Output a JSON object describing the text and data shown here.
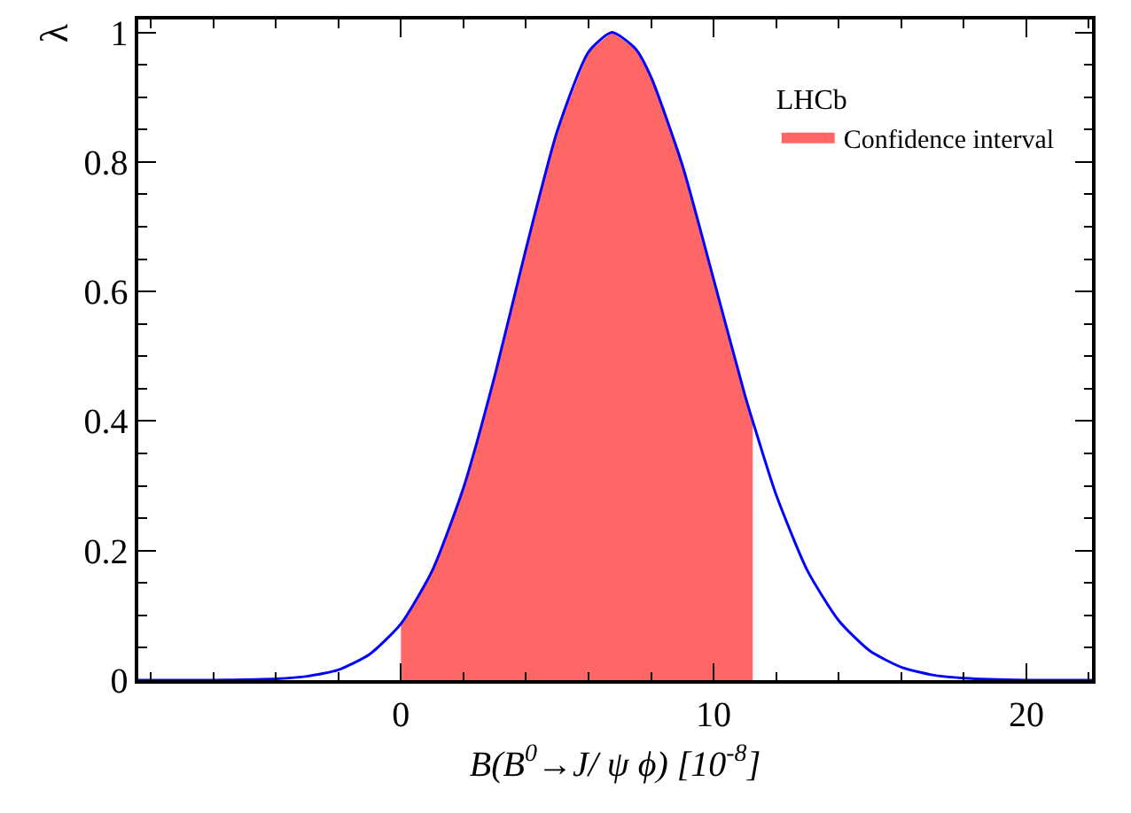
{
  "chart_data": {
    "type": "line",
    "xlabel": "B(B$^{0}$→J/ ψ ϕ) [10$^{-8}$]",
    "ylabel": "λ",
    "legend_title": "LHCb",
    "xlim": [
      -8.4,
      22.1
    ],
    "ylim": [
      0,
      1.02
    ],
    "xticks": [
      0,
      10,
      20
    ],
    "yticks": [
      0,
      0.2,
      0.4,
      0.6,
      0.8,
      1
    ],
    "legend": "top right",
    "marker": "none",
    "line_style": "solid",
    "series": [
      {
        "type": "area",
        "name": "Confidence interval",
        "color": "#ff6666",
        "x": [
          0,
          1,
          2,
          3,
          4,
          5,
          6,
          6.75,
          7.5,
          8,
          9,
          10,
          11,
          11.25
        ],
        "values": [
          0.087,
          0.169,
          0.297,
          0.47,
          0.666,
          0.848,
          0.97,
          1,
          0.975,
          0.931,
          0.795,
          0.619,
          0.44,
          0.4
        ]
      },
      {
        "color": "#0000ff",
        "x": [
          -8.4,
          -6,
          -4,
          -3,
          -2,
          -1,
          0,
          1,
          2,
          3,
          4,
          5,
          6,
          6.75,
          7.5,
          8,
          9,
          10,
          11,
          11.25,
          12,
          13,
          14,
          15,
          16,
          17,
          18,
          20,
          22.1
        ],
        "values": [
          0,
          0,
          0.002,
          0.006,
          0.016,
          0.04,
          0.087,
          0.169,
          0.297,
          0.47,
          0.666,
          0.848,
          0.97,
          1,
          0.975,
          0.931,
          0.795,
          0.619,
          0.44,
          0.4,
          0.286,
          0.169,
          0.092,
          0.045,
          0.02,
          0.008,
          0.003,
          0,
          0
        ]
      }
    ]
  }
}
